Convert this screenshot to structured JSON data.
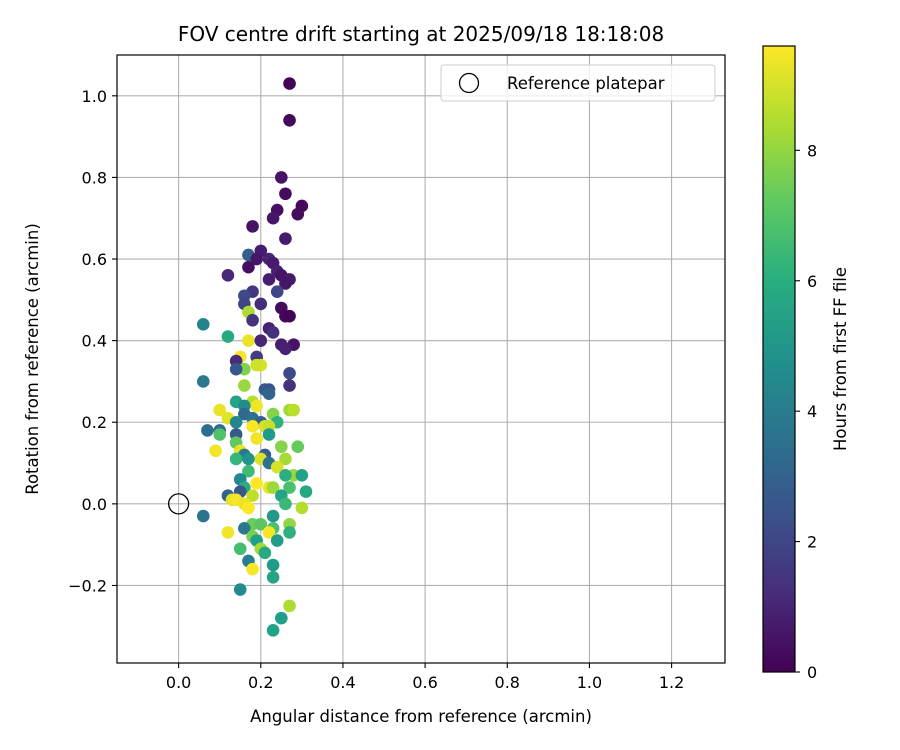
{
  "chart_data": {
    "type": "scatter",
    "title": "FOV centre drift starting at 2025/09/18 18:18:08",
    "xlabel": "Angular distance from reference (arcmin)",
    "ylabel": "Rotation from reference (arcmin)",
    "xlim": [
      -0.15,
      1.33
    ],
    "ylim": [
      -0.39,
      1.1
    ],
    "xticks": [
      0.0,
      0.2,
      0.4,
      0.6,
      0.8,
      1.0,
      1.2
    ],
    "xtick_labels": [
      "0.0",
      "0.2",
      "0.4",
      "0.6",
      "0.8",
      "1.0",
      "1.2"
    ],
    "yticks": [
      -0.2,
      0.0,
      0.2,
      0.4,
      0.6,
      0.8,
      1.0
    ],
    "ytick_labels": [
      "−0.2",
      "0.0",
      "0.2",
      "0.4",
      "0.6",
      "0.8",
      "1.0"
    ],
    "grid": true,
    "legend": {
      "position": "top-right",
      "entries": [
        "Reference platepar"
      ]
    },
    "reference_point": {
      "x": 0.0,
      "y": 0.0,
      "label": "Reference platepar"
    },
    "colorbar": {
      "label": "Hours from first FF file",
      "range": [
        0,
        9.6
      ],
      "ticks": [
        0,
        2,
        4,
        6,
        8
      ],
      "tick_labels": [
        "0",
        "2",
        "4",
        "6",
        "8"
      ],
      "colormap": "viridis"
    },
    "points": [
      {
        "x": 0.27,
        "y": 1.03,
        "h": 0.1
      },
      {
        "x": 0.27,
        "y": 0.94,
        "h": 0.2
      },
      {
        "x": 0.25,
        "y": 0.8,
        "h": 0.5
      },
      {
        "x": 0.26,
        "y": 0.76,
        "h": 0.3
      },
      {
        "x": 0.3,
        "y": 0.73,
        "h": 0.2
      },
      {
        "x": 0.24,
        "y": 0.72,
        "h": 0.4
      },
      {
        "x": 0.29,
        "y": 0.71,
        "h": 0.3
      },
      {
        "x": 0.23,
        "y": 0.7,
        "h": 0.6
      },
      {
        "x": 0.18,
        "y": 0.68,
        "h": 0.5
      },
      {
        "x": 0.26,
        "y": 0.65,
        "h": 0.7
      },
      {
        "x": 0.17,
        "y": 0.61,
        "h": 2.9
      },
      {
        "x": 0.2,
        "y": 0.62,
        "h": 0.8
      },
      {
        "x": 0.22,
        "y": 0.6,
        "h": 1.0
      },
      {
        "x": 0.19,
        "y": 0.6,
        "h": 0.6
      },
      {
        "x": 0.23,
        "y": 0.59,
        "h": 0.7
      },
      {
        "x": 0.17,
        "y": 0.58,
        "h": 0.4
      },
      {
        "x": 0.24,
        "y": 0.57,
        "h": 0.9
      },
      {
        "x": 0.12,
        "y": 0.56,
        "h": 1.1
      },
      {
        "x": 0.25,
        "y": 0.56,
        "h": 0.5
      },
      {
        "x": 0.27,
        "y": 0.55,
        "h": 0.7
      },
      {
        "x": 0.22,
        "y": 0.55,
        "h": 0.8
      },
      {
        "x": 0.26,
        "y": 0.54,
        "h": 0.6
      },
      {
        "x": 0.24,
        "y": 0.52,
        "h": 2.0
      },
      {
        "x": 0.18,
        "y": 0.52,
        "h": 1.6
      },
      {
        "x": 0.16,
        "y": 0.51,
        "h": 2.2
      },
      {
        "x": 0.16,
        "y": 0.49,
        "h": 1.9
      },
      {
        "x": 0.2,
        "y": 0.49,
        "h": 1.2
      },
      {
        "x": 0.25,
        "y": 0.48,
        "h": 0.3
      },
      {
        "x": 0.26,
        "y": 0.46,
        "h": 0.2
      },
      {
        "x": 0.27,
        "y": 0.46,
        "h": 0.1
      },
      {
        "x": 0.17,
        "y": 0.47,
        "h": 8.4
      },
      {
        "x": 0.18,
        "y": 0.45,
        "h": 1.4
      },
      {
        "x": 0.06,
        "y": 0.44,
        "h": 4.3
      },
      {
        "x": 0.22,
        "y": 0.43,
        "h": 0.9
      },
      {
        "x": 0.23,
        "y": 0.42,
        "h": 1.3
      },
      {
        "x": 0.12,
        "y": 0.41,
        "h": 5.8
      },
      {
        "x": 0.17,
        "y": 0.4,
        "h": 9.3
      },
      {
        "x": 0.2,
        "y": 0.4,
        "h": 1.0
      },
      {
        "x": 0.25,
        "y": 0.39,
        "h": 0.8
      },
      {
        "x": 0.28,
        "y": 0.39,
        "h": 0.5
      },
      {
        "x": 0.26,
        "y": 0.38,
        "h": 0.9
      },
      {
        "x": 0.15,
        "y": 0.36,
        "h": 9.5
      },
      {
        "x": 0.19,
        "y": 0.36,
        "h": 1.7
      },
      {
        "x": 0.14,
        "y": 0.35,
        "h": 1.2
      },
      {
        "x": 0.2,
        "y": 0.34,
        "h": 9.0
      },
      {
        "x": 0.19,
        "y": 0.34,
        "h": 8.9
      },
      {
        "x": 0.16,
        "y": 0.33,
        "h": 7.7
      },
      {
        "x": 0.14,
        "y": 0.33,
        "h": 2.6
      },
      {
        "x": 0.27,
        "y": 0.32,
        "h": 2.1
      },
      {
        "x": 0.06,
        "y": 0.3,
        "h": 3.9
      },
      {
        "x": 0.27,
        "y": 0.29,
        "h": 1.4
      },
      {
        "x": 0.16,
        "y": 0.29,
        "h": 8.1
      },
      {
        "x": 0.21,
        "y": 0.28,
        "h": 2.8
      },
      {
        "x": 0.22,
        "y": 0.28,
        "h": 2.5
      },
      {
        "x": 0.22,
        "y": 0.27,
        "h": 3.1
      },
      {
        "x": 0.14,
        "y": 0.25,
        "h": 5.6
      },
      {
        "x": 0.18,
        "y": 0.25,
        "h": 8.5
      },
      {
        "x": 0.19,
        "y": 0.24,
        "h": 9.4
      },
      {
        "x": 0.16,
        "y": 0.24,
        "h": 4.7
      },
      {
        "x": 0.1,
        "y": 0.23,
        "h": 9.3
      },
      {
        "x": 0.27,
        "y": 0.23,
        "h": 8.2
      },
      {
        "x": 0.28,
        "y": 0.23,
        "h": 8.6
      },
      {
        "x": 0.23,
        "y": 0.22,
        "h": 7.8
      },
      {
        "x": 0.16,
        "y": 0.22,
        "h": 3.3
      },
      {
        "x": 0.12,
        "y": 0.21,
        "h": 9.2
      },
      {
        "x": 0.18,
        "y": 0.21,
        "h": 3.6
      },
      {
        "x": 0.2,
        "y": 0.2,
        "h": 2.9
      },
      {
        "x": 0.24,
        "y": 0.2,
        "h": 6.1
      },
      {
        "x": 0.14,
        "y": 0.2,
        "h": 4.4
      },
      {
        "x": 0.18,
        "y": 0.19,
        "h": 9.5
      },
      {
        "x": 0.21,
        "y": 0.19,
        "h": 9.1
      },
      {
        "x": 0.22,
        "y": 0.19,
        "h": 8.8
      },
      {
        "x": 0.1,
        "y": 0.18,
        "h": 3.5
      },
      {
        "x": 0.07,
        "y": 0.18,
        "h": 3.4
      },
      {
        "x": 0.14,
        "y": 0.17,
        "h": 2.7
      },
      {
        "x": 0.1,
        "y": 0.17,
        "h": 6.9
      },
      {
        "x": 0.22,
        "y": 0.17,
        "h": 5.2
      },
      {
        "x": 0.19,
        "y": 0.16,
        "h": 9.4
      },
      {
        "x": 0.14,
        "y": 0.15,
        "h": 7.2
      },
      {
        "x": 0.25,
        "y": 0.14,
        "h": 7.8
      },
      {
        "x": 0.29,
        "y": 0.14,
        "h": 7.3
      },
      {
        "x": 0.15,
        "y": 0.13,
        "h": 9.3
      },
      {
        "x": 0.09,
        "y": 0.13,
        "h": 9.4
      },
      {
        "x": 0.16,
        "y": 0.12,
        "h": 3.8
      },
      {
        "x": 0.21,
        "y": 0.12,
        "h": 2.8
      },
      {
        "x": 0.14,
        "y": 0.11,
        "h": 6.3
      },
      {
        "x": 0.2,
        "y": 0.11,
        "h": 9.1
      },
      {
        "x": 0.17,
        "y": 0.11,
        "h": 5.0
      },
      {
        "x": 0.26,
        "y": 0.11,
        "h": 8.3
      },
      {
        "x": 0.22,
        "y": 0.1,
        "h": 3.6
      },
      {
        "x": 0.24,
        "y": 0.09,
        "h": 9.0
      },
      {
        "x": 0.17,
        "y": 0.08,
        "h": 6.6
      },
      {
        "x": 0.28,
        "y": 0.07,
        "h": 8.1
      },
      {
        "x": 0.3,
        "y": 0.07,
        "h": 5.5
      },
      {
        "x": 0.26,
        "y": 0.07,
        "h": 6.0
      },
      {
        "x": 0.15,
        "y": 0.06,
        "h": 4.5
      },
      {
        "x": 0.19,
        "y": 0.05,
        "h": 9.6
      },
      {
        "x": 0.22,
        "y": 0.04,
        "h": 9.3
      },
      {
        "x": 0.23,
        "y": 0.04,
        "h": 8.2
      },
      {
        "x": 0.27,
        "y": 0.04,
        "h": 6.8
      },
      {
        "x": 0.16,
        "y": 0.04,
        "h": 5.9
      },
      {
        "x": 0.15,
        "y": 0.03,
        "h": 2.6
      },
      {
        "x": 0.31,
        "y": 0.03,
        "h": 5.7
      },
      {
        "x": 0.12,
        "y": 0.02,
        "h": 3.0
      },
      {
        "x": 0.18,
        "y": 0.02,
        "h": 8.7
      },
      {
        "x": 0.25,
        "y": 0.02,
        "h": 5.6
      },
      {
        "x": 0.13,
        "y": 0.01,
        "h": 9.2
      },
      {
        "x": 0.14,
        "y": 0.01,
        "h": 9.5
      },
      {
        "x": 0.16,
        "y": 0.0,
        "h": 9.3
      },
      {
        "x": 0.26,
        "y": 0.0,
        "h": 6.5
      },
      {
        "x": 0.17,
        "y": -0.01,
        "h": 9.6
      },
      {
        "x": 0.3,
        "y": -0.01,
        "h": 8.5
      },
      {
        "x": 0.06,
        "y": -0.03,
        "h": 3.7
      },
      {
        "x": 0.23,
        "y": -0.03,
        "h": 5.1
      },
      {
        "x": 0.27,
        "y": -0.05,
        "h": 8.0
      },
      {
        "x": 0.18,
        "y": -0.05,
        "h": 7.4
      },
      {
        "x": 0.2,
        "y": -0.05,
        "h": 7.1
      },
      {
        "x": 0.16,
        "y": -0.06,
        "h": 3.9
      },
      {
        "x": 0.23,
        "y": -0.06,
        "h": 6.8
      },
      {
        "x": 0.12,
        "y": -0.07,
        "h": 9.4
      },
      {
        "x": 0.22,
        "y": -0.07,
        "h": 9.5
      },
      {
        "x": 0.27,
        "y": -0.07,
        "h": 6.1
      },
      {
        "x": 0.18,
        "y": -0.08,
        "h": 7.6
      },
      {
        "x": 0.19,
        "y": -0.09,
        "h": 5.4
      },
      {
        "x": 0.24,
        "y": -0.09,
        "h": 5.3
      },
      {
        "x": 0.2,
        "y": -0.11,
        "h": 8.3
      },
      {
        "x": 0.15,
        "y": -0.11,
        "h": 6.7
      },
      {
        "x": 0.21,
        "y": -0.12,
        "h": 5.8
      },
      {
        "x": 0.17,
        "y": -0.14,
        "h": 4.1
      },
      {
        "x": 0.23,
        "y": -0.15,
        "h": 5.2
      },
      {
        "x": 0.18,
        "y": -0.16,
        "h": 9.5
      },
      {
        "x": 0.23,
        "y": -0.18,
        "h": 5.6
      },
      {
        "x": 0.15,
        "y": -0.21,
        "h": 4.6
      },
      {
        "x": 0.27,
        "y": -0.25,
        "h": 8.4
      },
      {
        "x": 0.25,
        "y": -0.28,
        "h": 5.4
      },
      {
        "x": 0.23,
        "y": -0.31,
        "h": 5.5
      }
    ]
  }
}
